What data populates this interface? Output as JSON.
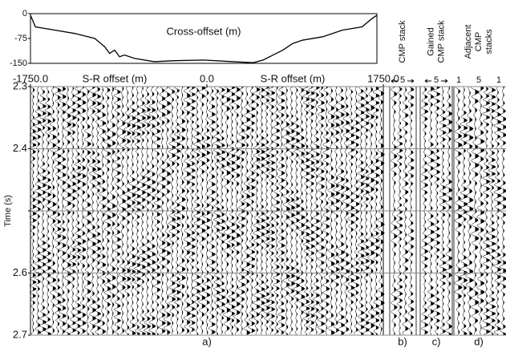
{
  "chart_data": [
    {
      "type": "line",
      "title": "Cross-offset (m)",
      "x": [
        -1750,
        -1700,
        -1500,
        -1300,
        -1100,
        -1000,
        -950,
        -900,
        -850,
        -800,
        -700,
        -500,
        -300,
        0,
        300,
        500,
        600,
        700,
        800,
        900,
        1000,
        1200,
        1400,
        1600,
        1700,
        1750
      ],
      "series": [
        {
          "color": "#000000",
          "values": [
            -5,
            -40,
            -50,
            -60,
            -75,
            -100,
            -120,
            -110,
            -130,
            -125,
            -135,
            -145,
            -142,
            -140,
            -145,
            -148,
            -140,
            -125,
            -110,
            -90,
            -80,
            -70,
            -50,
            -40,
            -15,
            -5
          ]
        }
      ],
      "xlim": [
        -1750,
        1750
      ],
      "ylim": [
        -150,
        0
      ],
      "yticks": [
        0,
        -75,
        -150
      ]
    },
    {
      "type": "wiggle",
      "caption": "a)",
      "xlabel": "S-R offset (m)",
      "ylabel": "Time (s)",
      "xlim": [
        -1750,
        1750
      ],
      "xticks": [
        {
          "value": -1750,
          "label": "-1750.0"
        },
        {
          "value": 0,
          "label": "0.0"
        },
        {
          "value": 1750,
          "label": "1750.0"
        }
      ],
      "ylim": [
        2.3,
        2.7
      ],
      "y_inverted": true,
      "yticks": [
        2.3,
        2.4,
        {
          "value": 2.5,
          "label": null
        },
        2.6,
        2.7
      ],
      "grid": true
    }
  ],
  "panels": [
    {
      "title": "CMP stack",
      "ticks": [
        "5"
      ],
      "caption": "b)"
    },
    {
      "title": "Gained CMP stack",
      "ticks": [
        "5"
      ],
      "caption": "c)"
    },
    {
      "title": "Adjacent CMP stacks",
      "ticks": [
        "1",
        "5",
        "1"
      ],
      "caption": "d)"
    }
  ]
}
